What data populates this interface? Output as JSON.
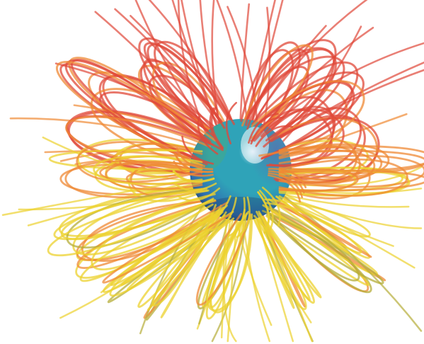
{
  "scene": {
    "subject": "sphere",
    "palette": {
      "background": "#ffffff",
      "sphere_light": "#cfe9f7",
      "sphere_teal": "#2fa3b8",
      "sphere_blue": "#2f6fb0",
      "sphere_purple": "#6a5aa8",
      "sphere_green": "#4fae6a",
      "sphere_dark": "#1c3f66",
      "line_red": "#e0493a",
      "line_orange": "#ef8a35",
      "line_yellow": "#ecd12f",
      "line_olive": "#b6ae3a"
    }
  }
}
